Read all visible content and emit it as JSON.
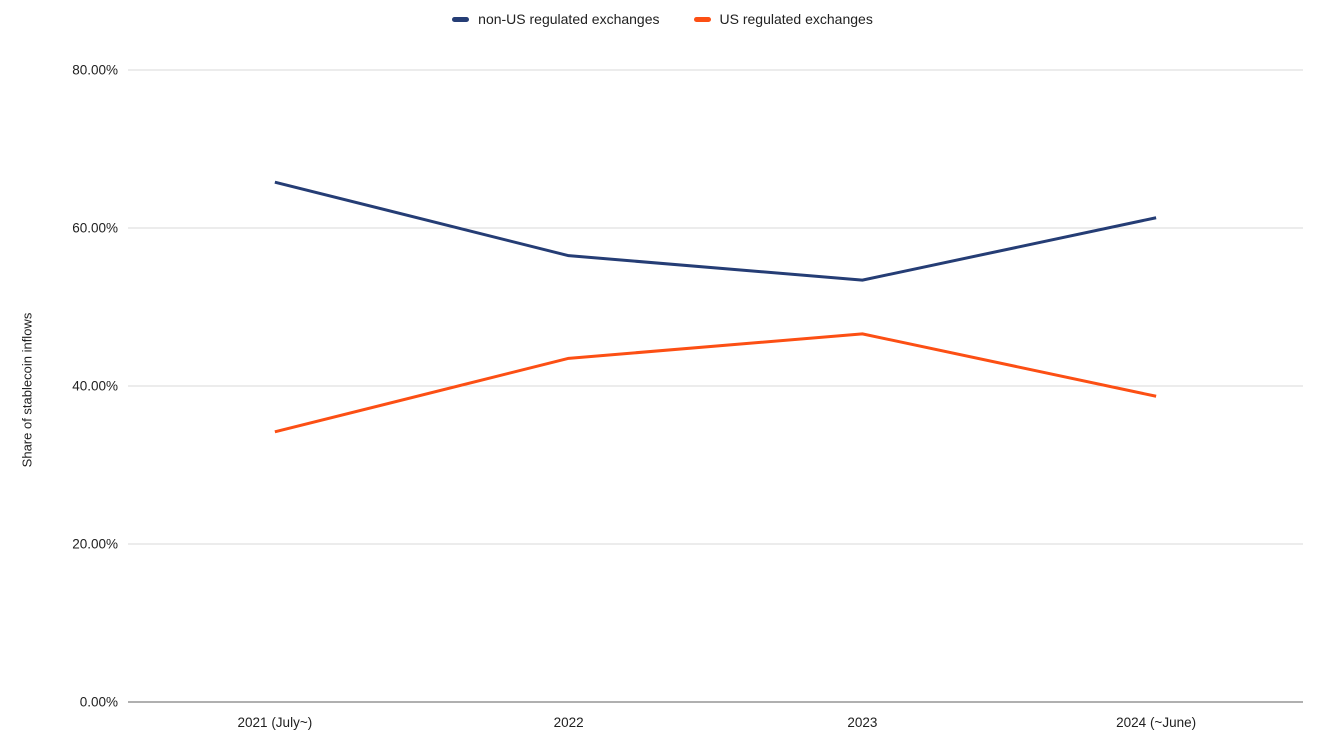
{
  "chart_data": {
    "type": "line",
    "title": "",
    "xlabel": "",
    "ylabel": "Share of stablecoin inflows",
    "categories": [
      "2021 (July~)",
      "2022",
      "2023",
      "2024 (~June)"
    ],
    "series": [
      {
        "name": "non-US regulated exchanges",
        "color": "#253d75",
        "values": [
          65.8,
          56.5,
          53.4,
          61.3
        ]
      },
      {
        "name": "US regulated exchanges",
        "color": "#fc4f14",
        "values": [
          34.2,
          43.5,
          46.6,
          38.7
        ]
      }
    ],
    "ylim": [
      0,
      80
    ],
    "yticks": [
      {
        "value": 0,
        "label": "0.00%"
      },
      {
        "value": 20,
        "label": "20.00%"
      },
      {
        "value": 40,
        "label": "40.00%"
      },
      {
        "value": 60,
        "label": "60.00%"
      },
      {
        "value": 80,
        "label": "80.00%"
      }
    ],
    "grid": true,
    "legend_position": "top"
  },
  "colors": {
    "background": "#ffffff",
    "gridline": "#d9d9d9",
    "baseline": "#616161",
    "tick_text": "#212121"
  }
}
